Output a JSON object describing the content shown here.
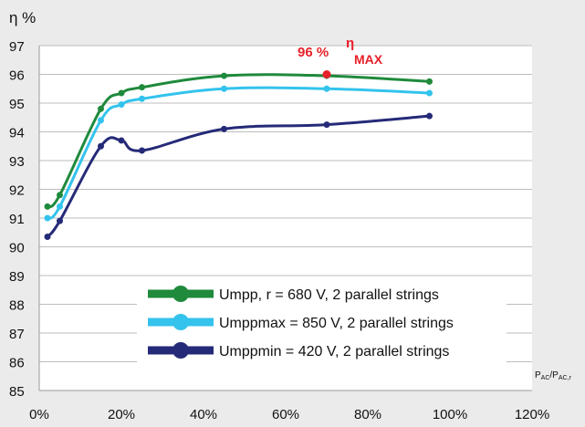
{
  "chart_data": {
    "type": "line",
    "ylabel": "η %",
    "xlabel_main": "P",
    "xlabel_sub": "AC",
    "xlabel_sep": "/P",
    "xlabel_sub2": "AC,r",
    "xlim": [
      0,
      120
    ],
    "ylim": [
      85,
      97
    ],
    "x_ticks": [
      0,
      20,
      40,
      60,
      80,
      100,
      120
    ],
    "x_tick_labels": [
      "0%",
      "20%",
      "40%",
      "60%",
      "80%",
      "100%",
      "120%"
    ],
    "y_ticks": [
      85,
      86,
      87,
      88,
      89,
      90,
      91,
      92,
      93,
      94,
      95,
      96,
      97
    ],
    "y_tick_labels": [
      "85",
      "86",
      "87",
      "88",
      "89",
      "90",
      "91",
      "92",
      "93",
      "94",
      "95",
      "96",
      "97"
    ],
    "grid": true,
    "legend_position": "bottom-center",
    "annotation": {
      "text": "96 %",
      "symbol": "η",
      "subscript": "MAX",
      "x": 70,
      "y": 96,
      "color": "#e8202a"
    },
    "series": [
      {
        "name": "Umpp, r = 680 V, 2 parallel strings",
        "color": "#1f8a3c",
        "x": [
          2,
          5,
          15,
          20,
          25,
          45,
          70,
          95
        ],
        "y": [
          91.4,
          91.8,
          94.8,
          95.35,
          95.55,
          95.95,
          95.95,
          95.75
        ]
      },
      {
        "name": "Umppmax = 850 V, 2 parallel strings",
        "color": "#33c3ec",
        "x": [
          2,
          5,
          15,
          20,
          25,
          45,
          70,
          95
        ],
        "y": [
          91.0,
          91.4,
          94.4,
          94.95,
          95.15,
          95.5,
          95.5,
          95.35
        ]
      },
      {
        "name": "Umppmin = 420 V, 2 parallel strings",
        "color": "#252a78",
        "x": [
          2,
          5,
          15,
          20,
          25,
          45,
          70,
          95
        ],
        "y": [
          90.35,
          90.9,
          93.5,
          93.7,
          93.35,
          94.1,
          94.25,
          94.55
        ]
      }
    ]
  }
}
